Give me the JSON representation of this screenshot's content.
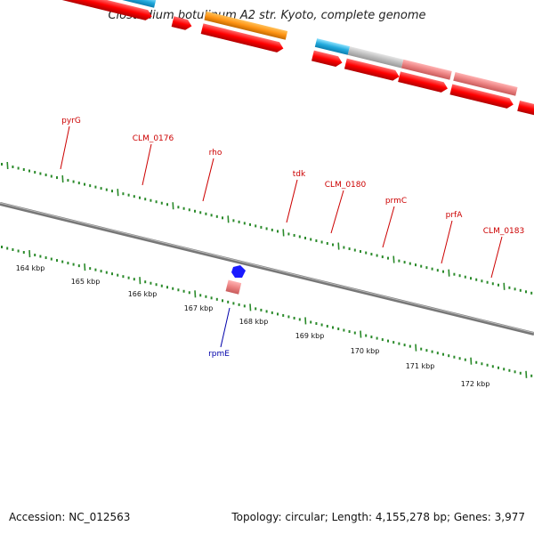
{
  "title": "Clostridium botulinum A2 str. Kyoto, complete genome",
  "footer": {
    "accession": "Accession: NC_012563",
    "summary": "Topology: circular; Length: 4,155,278 bp; Genes: 3,977"
  },
  "colors": {
    "cds": "#ff0000",
    "backbone": "#777777",
    "tick": "#2a8a2a",
    "label_red": "#cc0000",
    "label_blue": "#0000aa"
  },
  "kbp_labels": [
    "164 kbp",
    "165 kbp",
    "166 kbp",
    "167 kbp",
    "168 kbp",
    "169 kbp",
    "170 kbp",
    "171 kbp",
    "172 kbp"
  ],
  "gene_labels": [
    {
      "name": "pyrG",
      "color": "red"
    },
    {
      "name": "CLM_0176",
      "color": "red"
    },
    {
      "name": "rho",
      "color": "red"
    },
    {
      "name": "tdk",
      "color": "red"
    },
    {
      "name": "CLM_0180",
      "color": "red"
    },
    {
      "name": "prmC",
      "color": "red"
    },
    {
      "name": "prfA",
      "color": "red"
    },
    {
      "name": "CLM_0183",
      "color": "red"
    },
    {
      "name": "rpmE",
      "color": "blue"
    }
  ]
}
